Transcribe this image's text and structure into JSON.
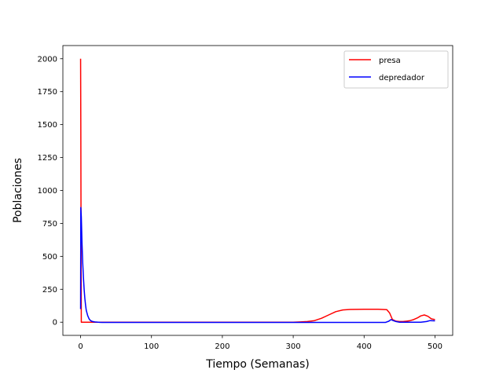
{
  "chart_data": {
    "type": "line",
    "title": "",
    "xlabel": "Tiempo (Semanas)",
    "ylabel": "Poblaciones",
    "xlim": [
      -25,
      525
    ],
    "ylim": [
      -100,
      2100
    ],
    "xticks": [
      0,
      100,
      200,
      300,
      400,
      500
    ],
    "yticks": [
      0,
      250,
      500,
      750,
      1000,
      1250,
      1500,
      1750,
      2000
    ],
    "grid": false,
    "legend_position": "top-right",
    "series": [
      {
        "name": "presa",
        "color": "#ff0000",
        "x": [
          0,
          0.3,
          0.7,
          1,
          5,
          50,
          100,
          200,
          300,
          310,
          320,
          330,
          340,
          350,
          360,
          370,
          380,
          400,
          420,
          432,
          436,
          440,
          445,
          450,
          455,
          460,
          465,
          470,
          475,
          480,
          485,
          490,
          495,
          500
        ],
        "y": [
          2000,
          1500,
          500,
          0,
          0,
          0,
          0,
          0,
          0,
          2,
          5,
          12,
          30,
          55,
          80,
          93,
          97,
          98,
          98,
          95,
          70,
          20,
          8,
          5,
          5,
          8,
          12,
          20,
          32,
          48,
          55,
          45,
          25,
          20
        ]
      },
      {
        "name": "depredador",
        "color": "#0000ff",
        "x": [
          0,
          0.3,
          1,
          2,
          3,
          4,
          5,
          6,
          7,
          8,
          10,
          12,
          14,
          17,
          20,
          25,
          30,
          50,
          100,
          200,
          300,
          400,
          430,
          435,
          438,
          441,
          445,
          450,
          480,
          488,
          493,
          500
        ],
        "y": [
          100,
          870,
          800,
          600,
          450,
          340,
          250,
          180,
          130,
          90,
          50,
          25,
          12,
          5,
          2,
          0,
          -2,
          -2,
          -2,
          -2,
          -2,
          -2,
          -2,
          8,
          20,
          12,
          5,
          0,
          0,
          5,
          12,
          10
        ]
      }
    ]
  }
}
